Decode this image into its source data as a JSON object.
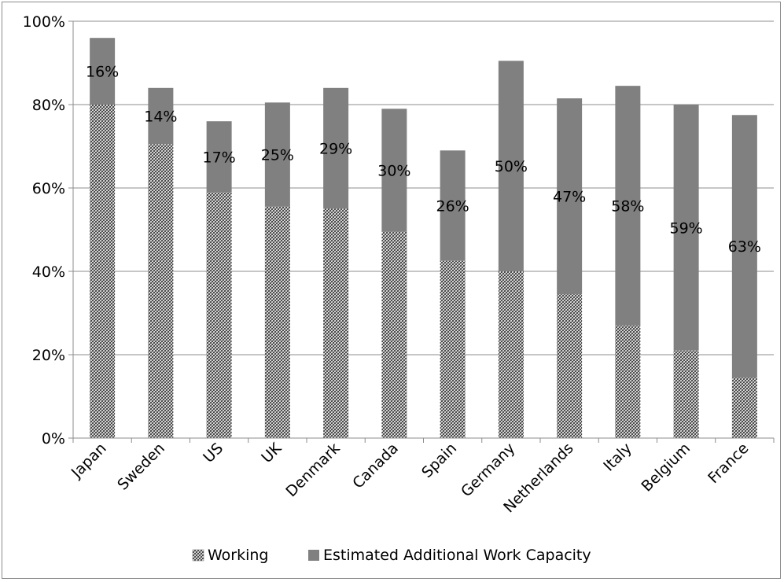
{
  "chart_data": {
    "type": "bar",
    "stacked": true,
    "categories": [
      "Japan",
      "Sweden",
      "US",
      "UK",
      "Denmark",
      "Canada",
      "Spain",
      "Germany",
      "Netherlands",
      "Italy",
      "Belgium",
      "France"
    ],
    "series": [
      {
        "name": "Working",
        "pattern": "crosshatch",
        "color": "#555555",
        "values": [
          80,
          70.5,
          59,
          55.5,
          55,
          49.5,
          42.5,
          40,
          34.5,
          27,
          21,
          14.5
        ]
      },
      {
        "name": "Estimated Additional Work Capacity",
        "color": "#808080",
        "values": [
          16,
          13.5,
          17,
          25,
          29,
          29.5,
          26.5,
          50.5,
          47,
          57.5,
          59,
          63
        ]
      }
    ],
    "data_labels": [
      "16%",
      "14%",
      "17%",
      "25%",
      "29%",
      "30%",
      "26%",
      "50%",
      "47%",
      "58%",
      "59%",
      "63%"
    ],
    "y_ticks": [
      "0%",
      "20%",
      "40%",
      "60%",
      "80%",
      "100%"
    ],
    "ylim": [
      0,
      100
    ],
    "grid": true,
    "legend_position": "bottom"
  }
}
